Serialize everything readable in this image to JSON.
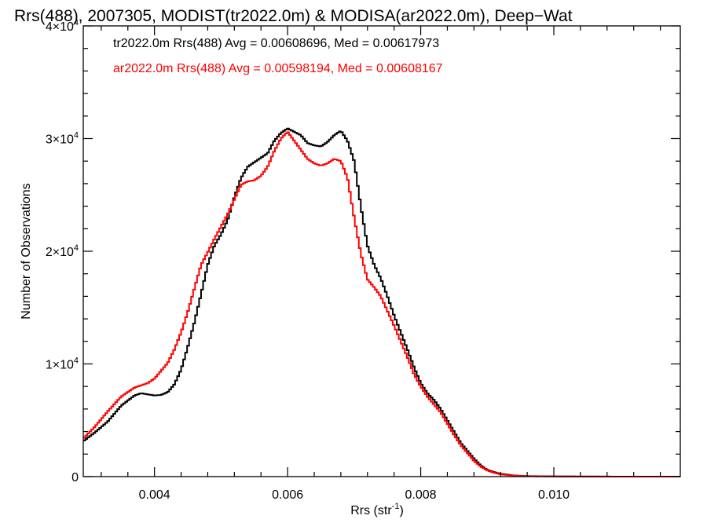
{
  "chart_data": {
    "type": "line",
    "title": "Rrs(488), 2007305, MODIST(tr2022.0m) & MODISA(ar2022.0m), Deep−Wat",
    "xlabel": "Rrs (str",
    "xlabel_sup": "-1",
    "xlabel_end": ")",
    "ylabel": "Number of Observations",
    "xlim": [
      0.00293,
      0.0119
    ],
    "ylim": [
      0,
      40000
    ],
    "x_ticks": [
      {
        "value": 0.004,
        "label": "0.004"
      },
      {
        "value": 0.006,
        "label": "0.006"
      },
      {
        "value": 0.008,
        "label": "0.008"
      },
      {
        "value": 0.01,
        "label": "0.010"
      }
    ],
    "y_ticks": [
      {
        "value": 0,
        "label": "0",
        "exp": ""
      },
      {
        "value": 10000,
        "label": "1×10",
        "exp": "4"
      },
      {
        "value": 20000,
        "label": "2×10",
        "exp": "4"
      },
      {
        "value": 30000,
        "label": "3×10",
        "exp": "4"
      },
      {
        "value": 40000,
        "label": "4×10",
        "exp": "4"
      }
    ],
    "legend_placement": "top-left",
    "series": [
      {
        "name": "tr2022.0m Rrs(488) Avg = 0.00608696, Med = 0.00617973",
        "color": "#000000",
        "points": [
          [
            0.0029,
            3000
          ],
          [
            0.0031,
            3900
          ],
          [
            0.0033,
            4900
          ],
          [
            0.0035,
            6300
          ],
          [
            0.0037,
            7200
          ],
          [
            0.0038,
            7400
          ],
          [
            0.0039,
            7300
          ],
          [
            0.004,
            7200
          ],
          [
            0.0041,
            7250
          ],
          [
            0.0042,
            7500
          ],
          [
            0.0043,
            8200
          ],
          [
            0.0044,
            9500
          ],
          [
            0.0045,
            11500
          ],
          [
            0.0046,
            13700
          ],
          [
            0.0047,
            16200
          ],
          [
            0.0048,
            18800
          ],
          [
            0.0049,
            20500
          ],
          [
            0.005,
            21500
          ],
          [
            0.0051,
            22800
          ],
          [
            0.0052,
            24800
          ],
          [
            0.0053,
            26500
          ],
          [
            0.0054,
            27500
          ],
          [
            0.0055,
            27900
          ],
          [
            0.0056,
            28300
          ],
          [
            0.0057,
            28700
          ],
          [
            0.0058,
            29800
          ],
          [
            0.0059,
            30500
          ],
          [
            0.006,
            30900
          ],
          [
            0.0061,
            30600
          ],
          [
            0.0062,
            30300
          ],
          [
            0.0063,
            29600
          ],
          [
            0.0064,
            29400
          ],
          [
            0.0065,
            29300
          ],
          [
            0.0066,
            29700
          ],
          [
            0.0067,
            30300
          ],
          [
            0.0068,
            30700
          ],
          [
            0.0069,
            29800
          ],
          [
            0.007,
            28000
          ],
          [
            0.0071,
            24000
          ],
          [
            0.0072,
            20500
          ],
          [
            0.0073,
            18800
          ],
          [
            0.0074,
            17600
          ],
          [
            0.0075,
            16000
          ],
          [
            0.0076,
            14300
          ],
          [
            0.0077,
            12800
          ],
          [
            0.0078,
            11300
          ],
          [
            0.0079,
            9700
          ],
          [
            0.008,
            8300
          ],
          [
            0.0081,
            7400
          ],
          [
            0.0082,
            6800
          ],
          [
            0.0083,
            6000
          ],
          [
            0.0084,
            5000
          ],
          [
            0.0085,
            4000
          ],
          [
            0.0086,
            3000
          ],
          [
            0.0087,
            2300
          ],
          [
            0.0088,
            1600
          ],
          [
            0.0089,
            1000
          ],
          [
            0.009,
            600
          ],
          [
            0.0091,
            400
          ],
          [
            0.0092,
            250
          ],
          [
            0.0094,
            100
          ],
          [
            0.0096,
            50
          ],
          [
            0.01,
            20
          ],
          [
            0.0105,
            8
          ],
          [
            0.011,
            3
          ],
          [
            0.0119,
            0
          ]
        ]
      },
      {
        "name": "ar2022.0m Rrs(488) Avg = 0.00598194, Med = 0.00608167",
        "color": "#ff0000",
        "points": [
          [
            0.0029,
            3200
          ],
          [
            0.0031,
            4400
          ],
          [
            0.0033,
            5800
          ],
          [
            0.0035,
            7100
          ],
          [
            0.0037,
            7900
          ],
          [
            0.0038,
            8100
          ],
          [
            0.0039,
            8300
          ],
          [
            0.004,
            8700
          ],
          [
            0.0041,
            9400
          ],
          [
            0.0042,
            10100
          ],
          [
            0.0043,
            11300
          ],
          [
            0.0044,
            12800
          ],
          [
            0.0045,
            14600
          ],
          [
            0.0046,
            16700
          ],
          [
            0.0047,
            18800
          ],
          [
            0.0048,
            19900
          ],
          [
            0.0049,
            21100
          ],
          [
            0.005,
            22200
          ],
          [
            0.0051,
            23300
          ],
          [
            0.0052,
            24600
          ],
          [
            0.0053,
            25900
          ],
          [
            0.0054,
            26200
          ],
          [
            0.0055,
            26300
          ],
          [
            0.0056,
            26700
          ],
          [
            0.0057,
            27500
          ],
          [
            0.0058,
            28900
          ],
          [
            0.0059,
            30000
          ],
          [
            0.006,
            30600
          ],
          [
            0.0061,
            29800
          ],
          [
            0.0062,
            29000
          ],
          [
            0.0063,
            28200
          ],
          [
            0.0064,
            27800
          ],
          [
            0.0065,
            27600
          ],
          [
            0.0066,
            27800
          ],
          [
            0.0067,
            28200
          ],
          [
            0.0068,
            28000
          ],
          [
            0.0069,
            26500
          ],
          [
            0.007,
            23000
          ],
          [
            0.0071,
            19800
          ],
          [
            0.0072,
            17500
          ],
          [
            0.0073,
            16800
          ],
          [
            0.0074,
            16000
          ],
          [
            0.0075,
            14700
          ],
          [
            0.0076,
            13400
          ],
          [
            0.0077,
            12000
          ],
          [
            0.0078,
            10600
          ],
          [
            0.0079,
            9100
          ],
          [
            0.008,
            8000
          ],
          [
            0.0081,
            7100
          ],
          [
            0.0082,
            6400
          ],
          [
            0.0083,
            5700
          ],
          [
            0.0084,
            4700
          ],
          [
            0.0085,
            3700
          ],
          [
            0.0086,
            2800
          ],
          [
            0.0087,
            2100
          ],
          [
            0.0088,
            1400
          ],
          [
            0.0089,
            900
          ],
          [
            0.009,
            550
          ],
          [
            0.0091,
            350
          ],
          [
            0.0092,
            200
          ],
          [
            0.0094,
            90
          ],
          [
            0.0096,
            40
          ],
          [
            0.01,
            15
          ],
          [
            0.0105,
            6
          ],
          [
            0.011,
            2
          ],
          [
            0.0119,
            0
          ]
        ]
      }
    ]
  }
}
